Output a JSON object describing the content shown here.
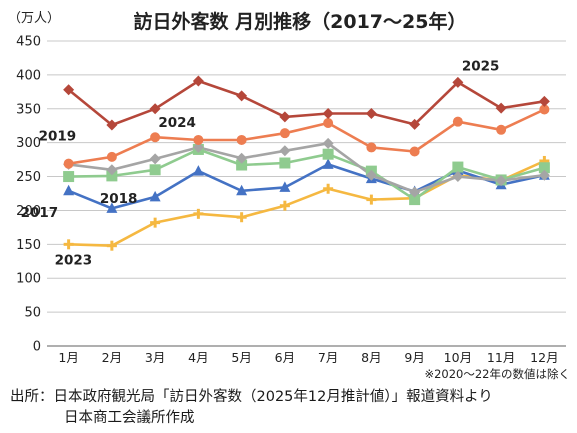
{
  "chart_data": {
    "type": "line",
    "title": "訪日外客数 月別推移（2017～25年）",
    "ylabel": "（万人）",
    "ylim": [
      0,
      450
    ],
    "yticks": [
      0,
      50,
      100,
      150,
      200,
      250,
      300,
      350,
      400,
      450
    ],
    "grid": true,
    "categories": [
      "1月",
      "2月",
      "3月",
      "4月",
      "5月",
      "6月",
      "7月",
      "8月",
      "9月",
      "10月",
      "11月",
      "12月"
    ],
    "series": [
      {
        "name": "2017",
        "color": "#4472c4",
        "marker": "triangle",
        "values": [
          229,
          203,
          220,
          258,
          229,
          234,
          268,
          247,
          228,
          259,
          238,
          252
        ]
      },
      {
        "name": "2018",
        "color": "#8fcb8f",
        "marker": "square",
        "values": [
          250,
          251,
          260,
          290,
          267,
          270,
          283,
          258,
          216,
          264,
          245,
          263
        ]
      },
      {
        "name": "2019",
        "color": "#a5a5a5",
        "marker": "diamond",
        "values": [
          268,
          260,
          276,
          293,
          277,
          288,
          299,
          252,
          227,
          250,
          244,
          252
        ]
      },
      {
        "name": "2023",
        "color": "#f5b841",
        "marker": "plus",
        "values": [
          150,
          148,
          182,
          195,
          190,
          207,
          232,
          216,
          218,
          252,
          244,
          273
        ]
      },
      {
        "name": "2024",
        "color": "#ed7d51",
        "marker": "circle",
        "values": [
          269,
          279,
          308,
          304,
          304,
          314,
          329,
          293,
          287,
          331,
          319,
          349
        ]
      },
      {
        "name": "2025",
        "color": "#b5473a",
        "marker": "diamond",
        "values": [
          378,
          326,
          350,
          391,
          369,
          338,
          343,
          343,
          327,
          389,
          351,
          361
        ]
      }
    ],
    "series_labels": [
      "2025",
      "2024",
      "2019",
      "2018",
      "2017",
      "2023"
    ],
    "note": "※2020～22年の数値は除く"
  },
  "source": {
    "line1": "出所：日本政府観光局「訪日外客数（2025年12月推計値）」報道資料より",
    "line2": "日本商工会議所作成"
  }
}
